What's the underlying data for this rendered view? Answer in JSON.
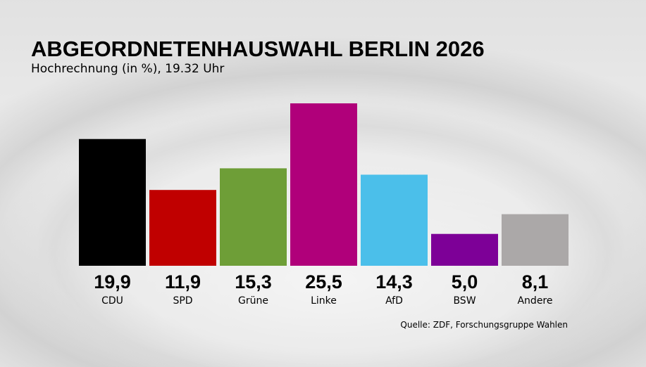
{
  "title": "ABGEORDNETENHAUSWAHL BERLIN 2026",
  "subtitle": "Hochrechnung (in %), 19.32 Uhr",
  "source": "Quelle: ZDF, Forschungsgruppe Wahlen",
  "chart_data": {
    "type": "bar",
    "title": "ABGEORDNETENHAUSWAHL BERLIN 2026",
    "subtitle": "Hochrechnung (in %), 19.32 Uhr",
    "categories": [
      "CDU",
      "SPD",
      "Grüne",
      "Linke",
      "AfD",
      "BSW",
      "Andere"
    ],
    "values": [
      19.9,
      11.9,
      15.3,
      25.5,
      14.3,
      5.0,
      8.1
    ],
    "value_labels": [
      "19,9",
      "11,9",
      "15,3",
      "25,5",
      "14,3",
      "5,0",
      "8,1"
    ],
    "colors": [
      "#000000",
      "#c00000",
      "#6e9e37",
      "#b0007a",
      "#4bbfea",
      "#7d0097",
      "#aba8a8"
    ],
    "ylim": [
      0,
      25.5
    ],
    "grid": false,
    "legend": "none"
  }
}
